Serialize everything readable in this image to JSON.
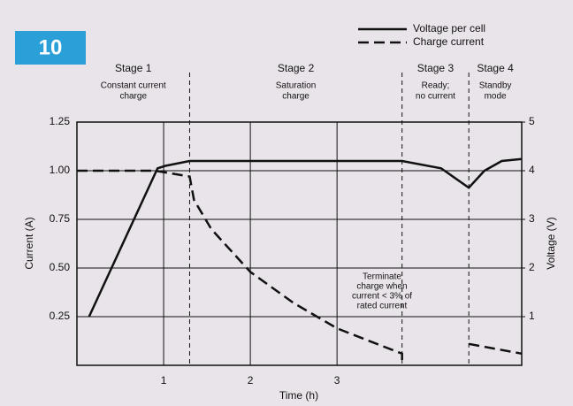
{
  "chart_data": {
    "type": "line",
    "badge": "10",
    "xlabel": "Time (h)",
    "ylabel": "Current (A)",
    "y2label": "Voltage (V)",
    "xlim": [
      0,
      5.13
    ],
    "xticks": [
      1,
      2,
      3
    ],
    "ylim": [
      0,
      1.25
    ],
    "yticks": [
      1.25,
      {
        "value": 1,
        "label": "1.00"
      },
      0.75,
      {
        "value": 0.5,
        "label": "0.50"
      },
      0.25
    ],
    "y2lim": [
      0,
      5
    ],
    "y2ticks": [
      1,
      2,
      3,
      4,
      5
    ],
    "grid": true,
    "series": [
      {
        "name": "Voltage per cell",
        "color": "#111111",
        "style": "solid",
        "axis": "y2",
        "x": [
          0.14,
          0.93,
          1.02,
          1.3,
          3.75,
          4.2,
          4.52,
          4.7,
          4.9,
          5.13
        ],
        "values": [
          1,
          4.05,
          4.1,
          4.2,
          4.2,
          4.05,
          3.65,
          4.0,
          4.2,
          4.24
        ]
      },
      {
        "name": "Charge current",
        "color": "#111111",
        "style": "dashed",
        "x": [
          0,
          0.9,
          1.3,
          1.35,
          1.55,
          2,
          2.5,
          3,
          3.4,
          3.75,
          3.75,
          4.1,
          4.52,
          5.13
        ],
        "values": [
          1,
          1,
          0.97,
          0.85,
          0.7,
          0.48,
          0.32,
          0.19,
          0.12,
          0.06,
          0,
          null,
          0.11,
          0.06
        ]
      }
    ],
    "stage_boundaries": [
      1.3,
      3.75,
      4.52
    ],
    "stages": [
      {
        "title": "Stage 1",
        "subtitle": [
          "Constant current",
          "charge"
        ]
      },
      {
        "title": "Stage 2",
        "subtitle": [
          "Saturation",
          "charge"
        ]
      },
      {
        "title": "Stage 3",
        "subtitle": [
          "Ready;",
          "no current"
        ]
      },
      {
        "title": "Stage 4",
        "subtitle": [
          "Standby",
          "mode"
        ]
      }
    ],
    "annotation": [
      "Terminate",
      "charge when",
      "current < 3% of",
      "rated current"
    ]
  }
}
